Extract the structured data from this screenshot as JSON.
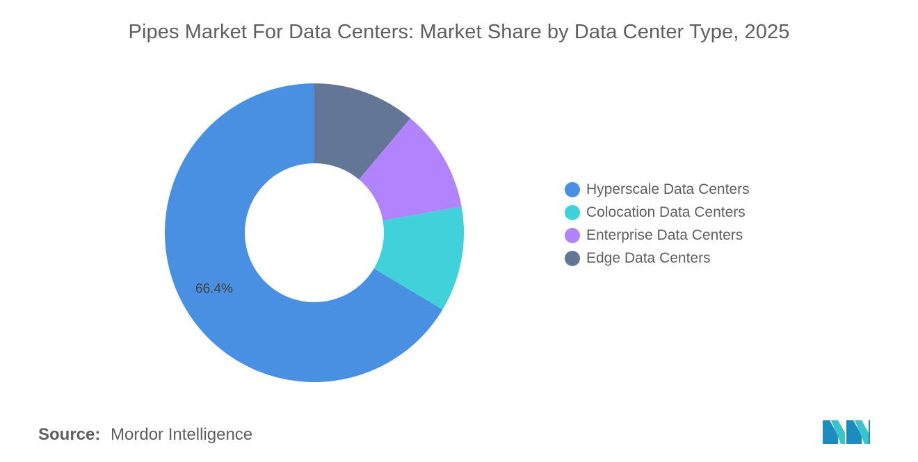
{
  "chart_data": {
    "type": "pie",
    "title": "Pipes Market For Data Centers: Market Share by Data Center Type, 2025",
    "donut": true,
    "slices": [
      {
        "label": "Hyperscale Data Centers",
        "value": 66.4,
        "color": "#4A90E2",
        "data_label": "66.4%"
      },
      {
        "label": "Colocation Data Centers",
        "value": 11.4,
        "color": "#40D1DB",
        "data_label": ""
      },
      {
        "label": "Enterprise Data Centers",
        "value": 11.1,
        "color": "#B183FD",
        "data_label": ""
      },
      {
        "label": "Edge Data Centers",
        "value": 11.1,
        "color": "#637696",
        "data_label": ""
      }
    ],
    "legend_position": "right"
  },
  "source": {
    "label": "Source:",
    "value": "Mordor Intelligence"
  },
  "logo": {
    "icon": "mordor-intelligence-logo",
    "colors": [
      "#1C8CBF",
      "#3CC2CC"
    ]
  }
}
